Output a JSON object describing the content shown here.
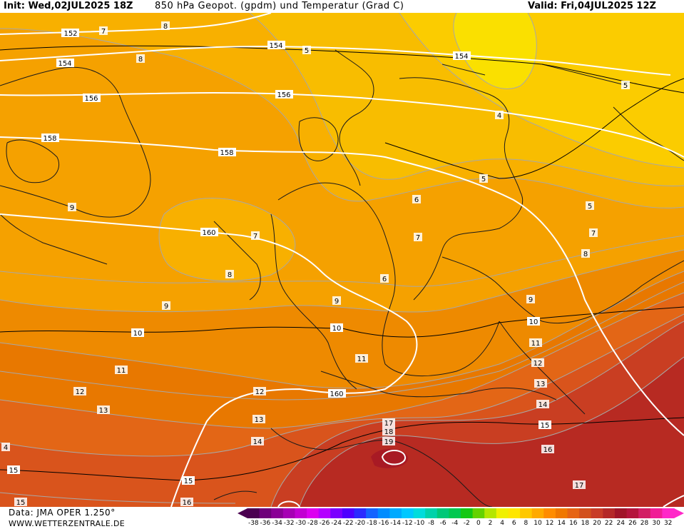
{
  "header": {
    "init": "Init: Wed,02JUL2025 18Z",
    "title": "850 hPa Geopot. (gpdm) und Temperatur (Grad C)",
    "valid": "Valid: Fri,04JUL2025 12Z"
  },
  "footer": {
    "data_source": "Data: JMA OPER 1.250°",
    "website": "WWW.WETTERZENTRALE.DE"
  },
  "legend": {
    "labels": [
      "-38",
      "-36",
      "-34",
      "-32",
      "-30",
      "-28",
      "-26",
      "-24",
      "-22",
      "-20",
      "-18",
      "-16",
      "-14",
      "-12",
      "-10",
      "-8",
      "-6",
      "-4",
      "-2",
      "0",
      "2",
      "4",
      "6",
      "8",
      "10",
      "12",
      "14",
      "16",
      "18",
      "20",
      "22",
      "24",
      "26",
      "28",
      "30",
      "32"
    ],
    "colors": [
      "#4b0050",
      "#6e007a",
      "#8a0096",
      "#a600b4",
      "#c200d2",
      "#dc00f0",
      "#b400ff",
      "#7a00ff",
      "#4e00ff",
      "#2b2bff",
      "#1464ff",
      "#008cff",
      "#00aaff",
      "#00c8ff",
      "#00dcdc",
      "#00d2aa",
      "#00c878",
      "#00c850",
      "#14c814",
      "#64d200",
      "#b4e600",
      "#f0f000",
      "#ffe600",
      "#ffc800",
      "#ffaa00",
      "#ff8c00",
      "#f07800",
      "#e66414",
      "#d2501e",
      "#c83c28",
      "#b42828",
      "#a01428",
      "#b4143c",
      "#d21e64",
      "#f01e96",
      "#ff28c8"
    ]
  },
  "map_labels": {
    "geopotential": [
      {
        "text": "152",
        "pos": "a"
      },
      {
        "text": "154",
        "pos": "b"
      },
      {
        "text": "154",
        "pos": "c"
      },
      {
        "text": "154",
        "pos": "d"
      },
      {
        "text": "156",
        "pos": "e"
      },
      {
        "text": "156",
        "pos": "f"
      },
      {
        "text": "158",
        "pos": "g"
      },
      {
        "text": "158",
        "pos": "h"
      },
      {
        "text": "160",
        "pos": "i"
      },
      {
        "text": "160",
        "pos": "j"
      }
    ],
    "temperature": [
      "7",
      "8",
      "8",
      "5",
      "5",
      "4",
      "5",
      "5",
      "6",
      "6",
      "7",
      "7",
      "7",
      "8",
      "8",
      "9",
      "9",
      "9",
      "9",
      "10",
      "10",
      "10",
      "11",
      "11",
      "11",
      "12",
      "12",
      "12",
      "13",
      "13",
      "13",
      "14",
      "14",
      "15",
      "15",
      "15",
      "16",
      "17",
      "17",
      "18",
      "19",
      "16",
      "4",
      "15"
    ]
  }
}
